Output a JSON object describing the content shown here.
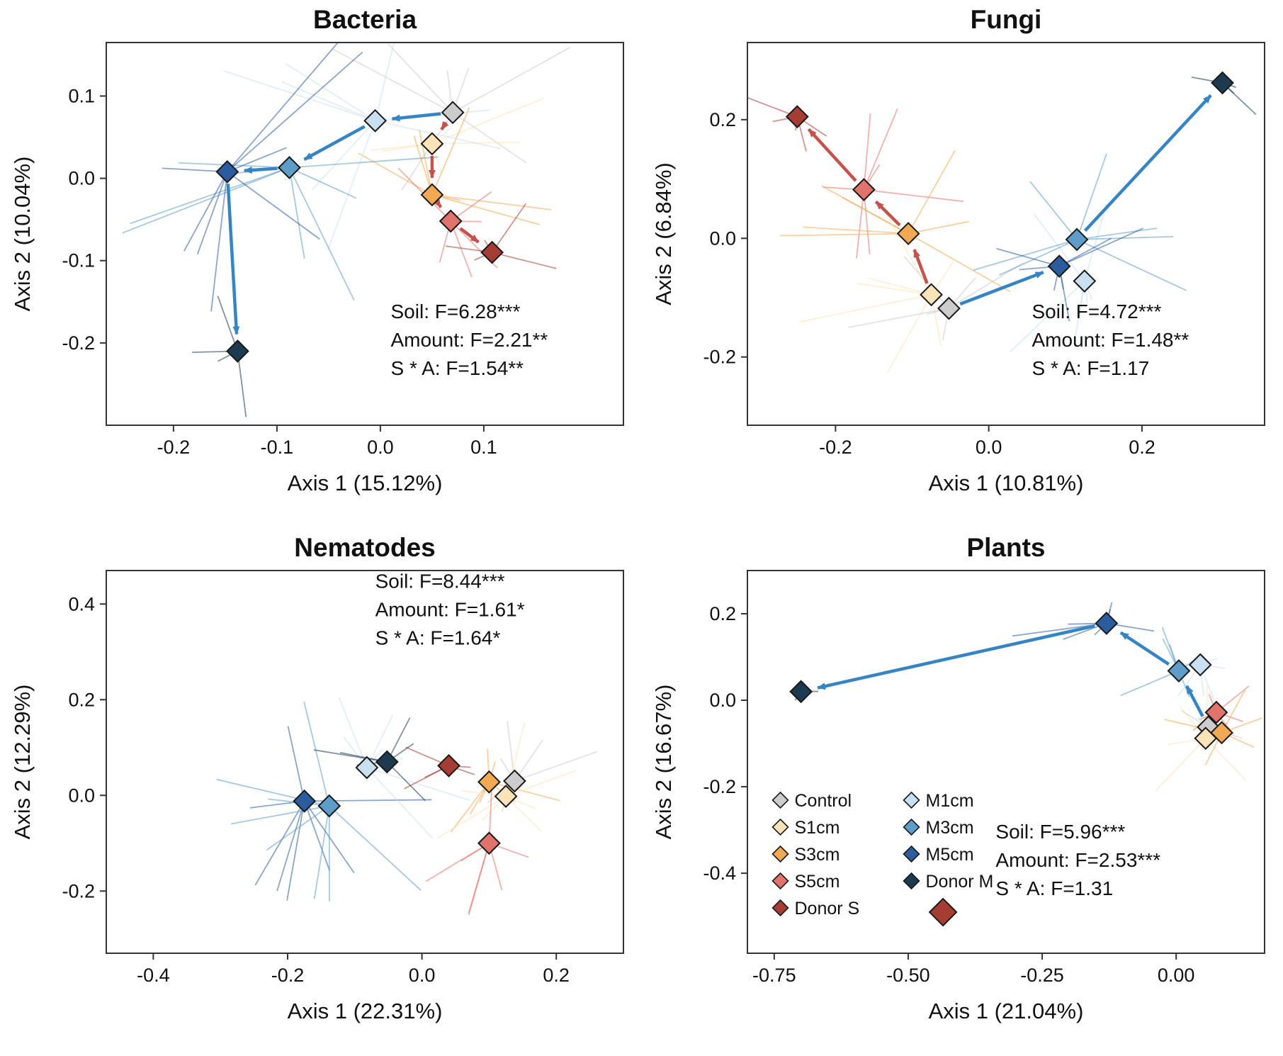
{
  "figure": {
    "background": "#ffffff"
  },
  "palette": {
    "Control": "#cccccc",
    "S1cm": "#fbe3b9",
    "S3cm": "#f2a954",
    "S5cm": "#e2736b",
    "Donor S": "#a63d33",
    "M1cm": "#c8e0ef",
    "M3cm": "#5d9dc8",
    "M5cm": "#2b5d9e",
    "Donor M": "#1c3a50"
  },
  "arrow_colors": {
    "blue": "#3584c4",
    "red": "#c3534c"
  },
  "marker": {
    "stroke": "#1a1a1a"
  },
  "legend": {
    "columns": [
      [
        "Control",
        "S1cm",
        "S3cm",
        "S5cm",
        "Donor S"
      ],
      [
        "M1cm",
        "M3cm",
        "M5cm",
        "Donor M"
      ]
    ]
  },
  "chart_data": [
    {
      "type": "scatter",
      "title": "Bacteria",
      "xlabel": "Axis 1 (15.12%)",
      "ylabel": "Axis 2 (10.04%)",
      "xlim": [
        -0.265,
        0.235
      ],
      "ylim": [
        -0.3,
        0.165
      ],
      "xticks": [
        {
          "v": -0.2,
          "label": "-0.2"
        },
        {
          "v": -0.1,
          "label": "-0.1"
        },
        {
          "v": 0.0,
          "label": "0.0"
        },
        {
          "v": 0.1,
          "label": "0.1"
        }
      ],
      "yticks": [
        {
          "v": 0.1,
          "label": "0.1"
        },
        {
          "v": 0.0,
          "label": "0.0"
        },
        {
          "v": -0.1,
          "label": "-0.1"
        },
        {
          "v": -0.2,
          "label": "-0.2"
        }
      ],
      "stats": [
        "Soil: F=6.28***",
        "Amount: F=2.21**",
        "S * A: F=1.54**"
      ],
      "stats_pos": [
        0.55,
        0.72
      ],
      "show_legend": false,
      "points": [
        {
          "group": "Control",
          "x": 0.07,
          "y": 0.08,
          "spread": 0.1,
          "spokes": 7
        },
        {
          "group": "S1cm",
          "x": 0.05,
          "y": 0.042,
          "spread": 0.1,
          "spokes": 7
        },
        {
          "group": "S3cm",
          "x": 0.05,
          "y": -0.02,
          "spread": 0.085,
          "spokes": 7
        },
        {
          "group": "S5cm",
          "x": 0.068,
          "y": -0.052,
          "spread": 0.075,
          "spokes": 6
        },
        {
          "group": "Donor S",
          "x": 0.108,
          "y": -0.09,
          "spread": 0.05,
          "spokes": 5
        },
        {
          "group": "M1cm",
          "x": -0.005,
          "y": 0.07,
          "spread": 0.12,
          "spokes": 8
        },
        {
          "group": "M3cm",
          "x": -0.088,
          "y": 0.013,
          "spread": 0.13,
          "spokes": 8
        },
        {
          "group": "M5cm",
          "x": -0.148,
          "y": 0.008,
          "spread": 0.14,
          "spokes": 8
        },
        {
          "group": "Donor M",
          "x": -0.138,
          "y": -0.21,
          "spread": 0.075,
          "spokes": 4
        }
      ],
      "arrows": [
        {
          "from": "Control",
          "to": "M1cm",
          "color": "blue"
        },
        {
          "from": "M1cm",
          "to": "M3cm",
          "color": "blue"
        },
        {
          "from": "M3cm",
          "to": "M5cm",
          "color": "blue"
        },
        {
          "from": "M5cm",
          "to": "Donor M",
          "color": "blue"
        },
        {
          "from": "Control",
          "to": "S1cm",
          "color": "red"
        },
        {
          "from": "S1cm",
          "to": "S3cm",
          "color": "red"
        },
        {
          "from": "S3cm",
          "to": "S5cm",
          "color": "red"
        },
        {
          "from": "S5cm",
          "to": "Donor S",
          "color": "red"
        }
      ]
    },
    {
      "type": "scatter",
      "title": "Fungi",
      "xlabel": "Axis 1 (10.81%)",
      "ylabel": "Axis 2 (6.84%)",
      "xlim": [
        -0.315,
        0.36
      ],
      "ylim": [
        -0.315,
        0.33
      ],
      "xticks": [
        {
          "v": -0.2,
          "label": "-0.2"
        },
        {
          "v": 0.0,
          "label": "0.0"
        },
        {
          "v": 0.2,
          "label": "0.2"
        }
      ],
      "yticks": [
        {
          "v": 0.2,
          "label": "0.2"
        },
        {
          "v": 0.0,
          "label": "0.0"
        },
        {
          "v": -0.2,
          "label": "-0.2"
        }
      ],
      "stats": [
        "Soil: F=4.72***",
        "Amount: F=1.48**",
        "S * A: F=1.17"
      ],
      "stats_pos": [
        0.55,
        0.72
      ],
      "show_legend": false,
      "points": [
        {
          "group": "Donor S",
          "x": -0.25,
          "y": 0.205,
          "spread": 0.07,
          "spokes": 5
        },
        {
          "group": "S5cm",
          "x": -0.163,
          "y": 0.082,
          "spread": 0.11,
          "spokes": 7
        },
        {
          "group": "S3cm",
          "x": -0.105,
          "y": 0.008,
          "spread": 0.12,
          "spokes": 7
        },
        {
          "group": "S1cm",
          "x": -0.075,
          "y": -0.095,
          "spread": 0.15,
          "spokes": 7
        },
        {
          "group": "Control",
          "x": -0.052,
          "y": -0.118,
          "spread": 0.1,
          "spokes": 6
        },
        {
          "group": "M1cm",
          "x": 0.125,
          "y": -0.072,
          "spread": 0.11,
          "spokes": 7
        },
        {
          "group": "M3cm",
          "x": 0.115,
          "y": -0.002,
          "spread": 0.12,
          "spokes": 7
        },
        {
          "group": "M5cm",
          "x": 0.092,
          "y": -0.047,
          "spread": 0.1,
          "spokes": 7
        },
        {
          "group": "Donor M",
          "x": 0.305,
          "y": 0.262,
          "spread": 0.07,
          "spokes": 4
        }
      ],
      "arrows": [
        {
          "from": "S1cm",
          "to": "S3cm",
          "color": "red"
        },
        {
          "from": "S3cm",
          "to": "S5cm",
          "color": "red"
        },
        {
          "from": "S5cm",
          "to": "Donor S",
          "color": "red"
        },
        {
          "from": "Control",
          "to": "M5cm",
          "color": "blue"
        },
        {
          "from": "M3cm",
          "to": "Donor M",
          "color": "blue"
        }
      ]
    },
    {
      "type": "scatter",
      "title": "Nematodes",
      "xlabel": "Axis 1 (22.31%)",
      "ylabel": "Axis 2 (12.29%)",
      "xlim": [
        -0.47,
        0.3
      ],
      "ylim": [
        -0.33,
        0.47
      ],
      "xticks": [
        {
          "v": -0.4,
          "label": "-0.4"
        },
        {
          "v": -0.2,
          "label": "-0.2"
        },
        {
          "v": 0.0,
          "label": "0.0"
        },
        {
          "v": 0.2,
          "label": "0.2"
        }
      ],
      "yticks": [
        {
          "v": 0.4,
          "label": "0.4"
        },
        {
          "v": 0.2,
          "label": "0.2"
        },
        {
          "v": 0.0,
          "label": "0.0"
        },
        {
          "v": -0.2,
          "label": "-0.2"
        }
      ],
      "stats": [
        "Soil: F=8.44***",
        "Amount: F=1.61*",
        "S * A: F=1.64*"
      ],
      "stats_pos": [
        0.52,
        0.045
      ],
      "show_legend": false,
      "points": [
        {
          "group": "M5cm",
          "x": -0.175,
          "y": -0.012,
          "spread": 0.17,
          "spokes": 8
        },
        {
          "group": "M3cm",
          "x": -0.138,
          "y": -0.022,
          "spread": 0.16,
          "spokes": 8
        },
        {
          "group": "M1cm",
          "x": -0.082,
          "y": 0.058,
          "spread": 0.14,
          "spokes": 7
        },
        {
          "group": "Donor M",
          "x": -0.052,
          "y": 0.07,
          "spread": 0.12,
          "spokes": 6
        },
        {
          "group": "Donor S",
          "x": 0.04,
          "y": 0.062,
          "spread": 0.08,
          "spokes": 5
        },
        {
          "group": "S3cm",
          "x": 0.1,
          "y": 0.028,
          "spread": 0.11,
          "spokes": 7
        },
        {
          "group": "Control",
          "x": 0.138,
          "y": 0.03,
          "spread": 0.1,
          "spokes": 6
        },
        {
          "group": "S1cm",
          "x": 0.125,
          "y": -0.002,
          "spread": 0.13,
          "spokes": 7
        },
        {
          "group": "S5cm",
          "x": 0.1,
          "y": -0.1,
          "spread": 0.12,
          "spokes": 7
        }
      ],
      "arrows": []
    },
    {
      "type": "scatter",
      "title": "Plants",
      "xlabel": "Axis 1 (21.04%)",
      "ylabel": "Axis 2 (16.67%)",
      "xlim": [
        -0.8,
        0.165
      ],
      "ylim": [
        -0.585,
        0.3
      ],
      "xticks": [
        {
          "v": -0.75,
          "label": "-0.75"
        },
        {
          "v": -0.5,
          "label": "-0.50"
        },
        {
          "v": -0.25,
          "label": "-0.25"
        },
        {
          "v": 0.0,
          "label": "0.00"
        }
      ],
      "yticks": [
        {
          "v": 0.2,
          "label": "0.2"
        },
        {
          "v": 0.0,
          "label": "0.0"
        },
        {
          "v": -0.2,
          "label": "-0.2"
        },
        {
          "v": -0.4,
          "label": "-0.4"
        }
      ],
      "stats": [
        "Soil: F=5.96***",
        "Amount: F=2.53***",
        "S * A: F=1.31"
      ],
      "stats_pos": [
        0.48,
        0.7
      ],
      "show_legend": true,
      "legend_pos": [
        0.05,
        0.6
      ],
      "points": [
        {
          "group": "Donor M",
          "x": -0.7,
          "y": 0.02,
          "spread": 0.035,
          "spokes": 4
        },
        {
          "group": "M5cm",
          "x": -0.13,
          "y": 0.178,
          "spread": 0.13,
          "spokes": 7
        },
        {
          "group": "M3cm",
          "x": 0.005,
          "y": 0.068,
          "spread": 0.09,
          "spokes": 6
        },
        {
          "group": "M1cm",
          "x": 0.045,
          "y": 0.082,
          "spread": 0.08,
          "spokes": 6
        },
        {
          "group": "S5cm",
          "x": 0.075,
          "y": -0.028,
          "spread": 0.09,
          "spokes": 6
        },
        {
          "group": "Control",
          "x": 0.06,
          "y": -0.062,
          "spread": 0.05,
          "spokes": 5
        },
        {
          "group": "S1cm",
          "x": 0.055,
          "y": -0.088,
          "spread": 0.11,
          "spokes": 6
        },
        {
          "group": "S3cm",
          "x": 0.085,
          "y": -0.075,
          "spread": 0.1,
          "spokes": 6
        },
        {
          "group": "Donor S",
          "x": -0.435,
          "y": -0.49,
          "spread": 0,
          "spokes": 0,
          "big": true
        }
      ],
      "arrows": [
        {
          "from": "Control",
          "to": "M3cm",
          "color": "blue"
        },
        {
          "from": "M3cm",
          "to": "M5cm",
          "color": "blue"
        },
        {
          "from": "M5cm",
          "to": "Donor M",
          "color": "blue"
        }
      ]
    }
  ]
}
